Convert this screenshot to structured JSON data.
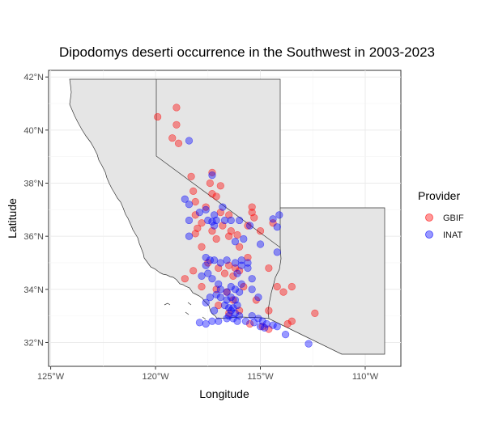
{
  "chart_data": {
    "type": "scatter",
    "title": "Dipodomys deserti occurrence in the Southwest in 2003-2023",
    "xlabel": "Longitude",
    "ylabel": "Latitude",
    "xlim": [
      -125.1,
      -108.3
    ],
    "ylim": [
      31.1,
      42.25
    ],
    "x_ticks": [
      -125,
      -120,
      -115,
      -110
    ],
    "x_tick_labels": [
      "125°W",
      "120°W",
      "115°W",
      "110°W"
    ],
    "y_ticks": [
      32,
      34,
      36,
      38,
      40,
      42
    ],
    "y_tick_labels": [
      "32°N",
      "34°N",
      "36°N",
      "38°N",
      "40°N",
      "42°N"
    ],
    "grid": true,
    "legend_position": "right",
    "legend": {
      "title": "Provider",
      "entries": [
        {
          "label": "GBIF",
          "color": "#ff0000"
        },
        {
          "label": "INAT",
          "color": "#0000ff"
        }
      ]
    },
    "background_region_fill": "#e5e5e5",
    "series": [
      {
        "name": "GBIF",
        "color": "#ff0000",
        "points": [
          [
            -119.9,
            40.5
          ],
          [
            -119.0,
            40.85
          ],
          [
            -119.0,
            40.2
          ],
          [
            -119.2,
            39.7
          ],
          [
            -118.9,
            39.5
          ],
          [
            -117.3,
            38.4
          ],
          [
            -117.4,
            38.0
          ],
          [
            -118.3,
            38.25
          ],
          [
            -118.2,
            37.7
          ],
          [
            -117.3,
            37.6
          ],
          [
            -116.9,
            37.9
          ],
          [
            -117.6,
            37.1
          ],
          [
            -118.1,
            37.3
          ],
          [
            -117.1,
            37.5
          ],
          [
            -118.1,
            36.8
          ],
          [
            -118.0,
            36.3
          ],
          [
            -118.1,
            36.1
          ],
          [
            -117.8,
            36.5
          ],
          [
            -117.3,
            36.2
          ],
          [
            -116.8,
            36.4
          ],
          [
            -116.9,
            36.9
          ],
          [
            -116.5,
            36.8
          ],
          [
            -116.4,
            36.2
          ],
          [
            -116.1,
            36.05
          ],
          [
            -117.1,
            35.9
          ],
          [
            -116.5,
            36.0
          ],
          [
            -116.0,
            35.6
          ],
          [
            -117.8,
            35.6
          ],
          [
            -117.5,
            35.0
          ],
          [
            -117.0,
            34.8
          ],
          [
            -116.5,
            34.9
          ],
          [
            -118.6,
            34.4
          ],
          [
            -118.2,
            34.7
          ],
          [
            -117.8,
            34.1
          ],
          [
            -117.1,
            34.0
          ],
          [
            -116.7,
            34.6
          ],
          [
            -116.3,
            34.5
          ],
          [
            -116.0,
            34.7
          ],
          [
            -115.6,
            35.2
          ],
          [
            -115.4,
            37.1
          ],
          [
            -115.4,
            36.9
          ],
          [
            -115.3,
            36.7
          ],
          [
            -115.6,
            36.4
          ],
          [
            -115.0,
            36.2
          ],
          [
            -114.4,
            36.5
          ],
          [
            -114.6,
            34.8
          ],
          [
            -114.2,
            34.1
          ],
          [
            -113.9,
            33.9
          ],
          [
            -113.5,
            34.1
          ],
          [
            -112.4,
            33.1
          ],
          [
            -114.6,
            33.2
          ],
          [
            -113.7,
            32.7
          ],
          [
            -113.5,
            32.8
          ],
          [
            -114.9,
            32.6
          ],
          [
            -115.5,
            32.7
          ],
          [
            -116.0,
            33.2
          ],
          [
            -116.3,
            33.6
          ],
          [
            -116.5,
            33.1
          ],
          [
            -117.0,
            33.4
          ],
          [
            -115.8,
            34.1
          ],
          [
            -115.2,
            33.6
          ],
          [
            -114.6,
            32.5
          ],
          [
            -116.6,
            33.9
          ],
          [
            -116.2,
            34.8
          ]
        ]
      },
      {
        "name": "INAT",
        "color": "#0000ff",
        "points": [
          [
            -118.4,
            39.6
          ],
          [
            -117.3,
            38.3
          ],
          [
            -118.6,
            37.4
          ],
          [
            -118.4,
            37.2
          ],
          [
            -117.6,
            37.0
          ],
          [
            -117.9,
            36.9
          ],
          [
            -117.2,
            36.8
          ],
          [
            -116.8,
            37.1
          ],
          [
            -116.7,
            36.6
          ],
          [
            -117.1,
            36.6
          ],
          [
            -117.3,
            36.55
          ],
          [
            -117.5,
            36.6
          ],
          [
            -117.2,
            36.4
          ],
          [
            -118.4,
            36.6
          ],
          [
            -118.4,
            36.0
          ],
          [
            -116.4,
            36.6
          ],
          [
            -116.0,
            36.6
          ],
          [
            -115.5,
            36.4
          ],
          [
            -114.1,
            36.8
          ],
          [
            -114.4,
            36.65
          ],
          [
            -114.2,
            36.35
          ],
          [
            -115.0,
            35.7
          ],
          [
            -114.2,
            35.4
          ],
          [
            -115.8,
            35.9
          ],
          [
            -116.2,
            35.8
          ],
          [
            -117.6,
            35.2
          ],
          [
            -117.4,
            35.1
          ],
          [
            -117.2,
            35.1
          ],
          [
            -116.9,
            35.0
          ],
          [
            -116.6,
            35.1
          ],
          [
            -116.2,
            35.0
          ],
          [
            -115.9,
            35.1
          ],
          [
            -115.9,
            34.9
          ],
          [
            -115.6,
            34.8
          ],
          [
            -117.6,
            34.9
          ],
          [
            -117.8,
            34.5
          ],
          [
            -117.5,
            34.6
          ],
          [
            -117.3,
            34.4
          ],
          [
            -117.0,
            34.2
          ],
          [
            -116.9,
            34.0
          ],
          [
            -116.6,
            33.9
          ],
          [
            -116.4,
            34.1
          ],
          [
            -116.2,
            34.0
          ],
          [
            -116.0,
            33.9
          ],
          [
            -115.9,
            34.2
          ],
          [
            -115.4,
            34.0
          ],
          [
            -115.1,
            33.7
          ],
          [
            -117.1,
            33.8
          ],
          [
            -117.4,
            33.7
          ],
          [
            -116.9,
            33.7
          ],
          [
            -116.6,
            33.6
          ],
          [
            -116.4,
            33.7
          ],
          [
            -116.2,
            33.6
          ],
          [
            -116.7,
            33.4
          ],
          [
            -116.5,
            33.3
          ],
          [
            -116.3,
            33.3
          ],
          [
            -116.1,
            33.4
          ],
          [
            -116.4,
            33.2
          ],
          [
            -116.2,
            33.1
          ],
          [
            -116.0,
            33.0
          ],
          [
            -116.5,
            33.0
          ],
          [
            -116.3,
            32.9
          ],
          [
            -116.1,
            32.8
          ],
          [
            -116.6,
            32.9
          ],
          [
            -115.7,
            32.8
          ],
          [
            -115.4,
            33.0
          ],
          [
            -115.1,
            32.9
          ],
          [
            -114.9,
            32.8
          ],
          [
            -114.7,
            32.7
          ],
          [
            -114.4,
            32.65
          ],
          [
            -114.2,
            32.6
          ],
          [
            -113.8,
            32.3
          ],
          [
            -112.7,
            31.95
          ],
          [
            -114.8,
            32.55
          ],
          [
            -115.0,
            32.6
          ],
          [
            -115.3,
            32.75
          ],
          [
            -117.0,
            32.8
          ],
          [
            -117.3,
            32.8
          ],
          [
            -117.6,
            32.7
          ],
          [
            -117.9,
            32.75
          ],
          [
            -117.2,
            33.2
          ],
          [
            -117.6,
            33.5
          ],
          [
            -115.4,
            34.4
          ],
          [
            -115.6,
            35.0
          ],
          [
            -116.1,
            34.6
          ]
        ]
      }
    ]
  }
}
